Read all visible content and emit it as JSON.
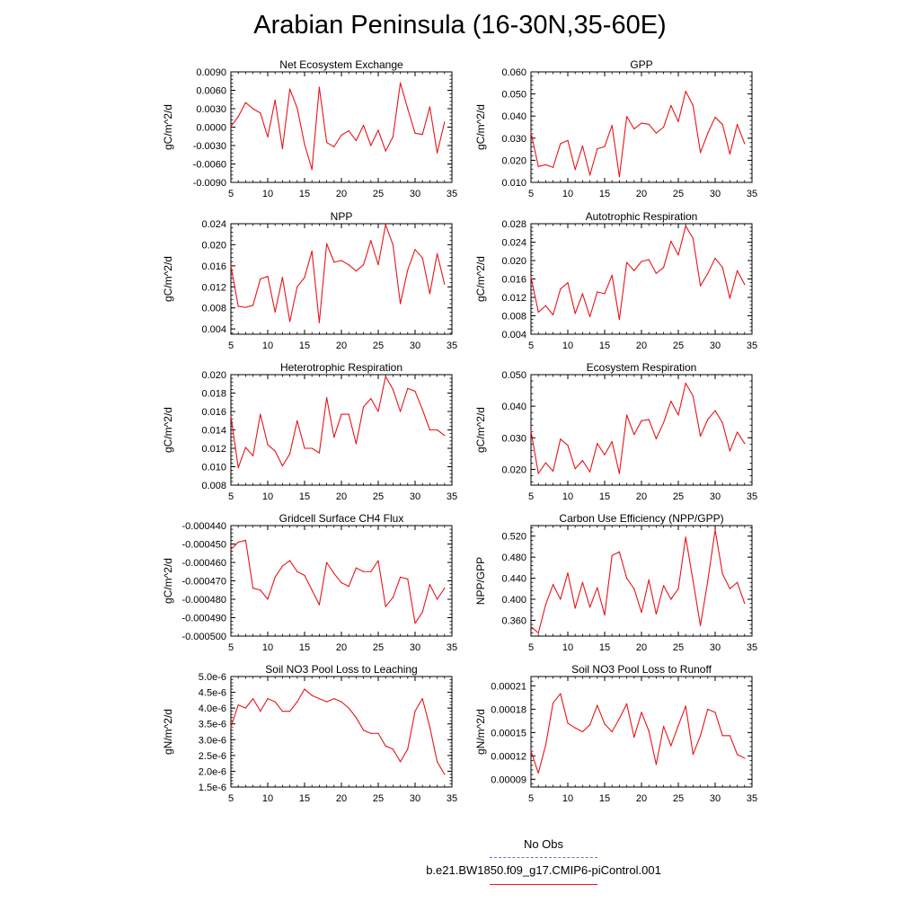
{
  "title": "Arabian Peninsula (16-30N,35-60E)",
  "colors": {
    "series": "#e8141b",
    "obs": "#6a6ad8"
  },
  "legend": {
    "obs_label": "No Obs",
    "model_label": "b.e21.BW1850.f09_g17.CMIP6-piControl.001"
  },
  "chart_data": [
    {
      "type": "line",
      "title": "Net Ecosystem Exchange",
      "ylabel": "gC/m^2/d",
      "xlim": [
        5,
        35
      ],
      "xticks": [
        5,
        10,
        15,
        20,
        25,
        30,
        35
      ],
      "xtick_labels": [
        "5",
        "10",
        "15",
        "20",
        "25",
        "30",
        "35"
      ],
      "ylim": [
        -0.009,
        0.009
      ],
      "yticks": [
        -0.009,
        -0.006,
        -0.003,
        0,
        0.003,
        0.006,
        0.009
      ],
      "ytick_labels": [
        "-0.0090",
        "-0.0060",
        "-0.0030",
        "0.0000",
        "0.0030",
        "0.0060",
        "0.0090"
      ],
      "x": [
        5,
        6,
        7,
        8,
        9,
        10,
        11,
        12,
        13,
        14,
        15,
        16,
        17,
        18,
        19,
        20,
        21,
        22,
        23,
        24,
        25,
        26,
        27,
        28,
        29,
        30,
        31,
        32,
        33,
        34
      ],
      "series": [
        {
          "values": [
            0.0001,
            0.0017,
            0.004,
            0.003,
            0.0023,
            -0.0016,
            0.0044,
            -0.0035,
            0.0062,
            0.0031,
            -0.0028,
            -0.0069,
            0.0065,
            -0.0025,
            -0.0032,
            -0.0013,
            -0.0006,
            -0.0022,
            0.0003,
            -0.003,
            -0.0005,
            -0.0039,
            -0.0016,
            0.0072,
            0.003,
            -0.001,
            -0.0012,
            0.0033,
            -0.0042,
            0.0008
          ]
        }
      ]
    },
    {
      "type": "line",
      "title": "GPP",
      "ylabel": "gC/m^2/d",
      "xlim": [
        5,
        35
      ],
      "xticks": [
        5,
        10,
        15,
        20,
        25,
        30,
        35
      ],
      "xtick_labels": [
        "5",
        "10",
        "15",
        "20",
        "25",
        "30",
        "35"
      ],
      "ylim": [
        0.01,
        0.06
      ],
      "yticks": [
        0.01,
        0.02,
        0.03,
        0.04,
        0.05,
        0.06
      ],
      "ytick_labels": [
        "0.010",
        "0.020",
        "0.030",
        "0.040",
        "0.050",
        "0.060"
      ],
      "x": [
        5,
        6,
        7,
        8,
        9,
        10,
        11,
        12,
        13,
        14,
        15,
        16,
        17,
        18,
        19,
        20,
        21,
        22,
        23,
        24,
        25,
        26,
        27,
        28,
        29,
        30,
        31,
        32,
        33,
        34
      ],
      "series": [
        {
          "values": [
            0.0325,
            0.0172,
            0.018,
            0.0168,
            0.0275,
            0.029,
            0.0158,
            0.0265,
            0.0133,
            0.0252,
            0.0262,
            0.0358,
            0.0125,
            0.0398,
            0.0342,
            0.0368,
            0.0363,
            0.0323,
            0.035,
            0.0448,
            0.0375,
            0.0512,
            0.0448,
            0.0235,
            0.0322,
            0.0395,
            0.0362,
            0.0228,
            0.0362,
            0.0275
          ]
        }
      ]
    },
    {
      "type": "line",
      "title": "NPP",
      "ylabel": "gC/m^2/d",
      "xlim": [
        5,
        35
      ],
      "xticks": [
        5,
        10,
        15,
        20,
        25,
        30,
        35
      ],
      "xtick_labels": [
        "5",
        "10",
        "15",
        "20",
        "25",
        "30",
        "35"
      ],
      "ylim": [
        0.003,
        0.024
      ],
      "yticks": [
        0.004,
        0.008,
        0.012,
        0.016,
        0.02,
        0.024
      ],
      "ytick_labels": [
        "0.004",
        "0.008",
        "0.012",
        "0.016",
        "0.020",
        "0.024"
      ],
      "x": [
        5,
        6,
        7,
        8,
        9,
        10,
        11,
        12,
        13,
        14,
        15,
        16,
        17,
        18,
        19,
        20,
        21,
        22,
        23,
        24,
        25,
        26,
        27,
        28,
        29,
        30,
        31,
        32,
        33,
        34
      ],
      "series": [
        {
          "values": [
            0.016,
            0.0083,
            0.0081,
            0.0085,
            0.0135,
            0.014,
            0.0072,
            0.0138,
            0.0054,
            0.012,
            0.0138,
            0.0188,
            0.0052,
            0.0202,
            0.0167,
            0.017,
            0.0162,
            0.015,
            0.0162,
            0.0208,
            0.0162,
            0.0238,
            0.02,
            0.0088,
            0.0152,
            0.0191,
            0.0175,
            0.0107,
            0.0183,
            0.0125
          ]
        }
      ]
    },
    {
      "type": "line",
      "title": "Autotrophic Respiration",
      "ylabel": "gC/m^2/d",
      "xlim": [
        5,
        35
      ],
      "xticks": [
        5,
        10,
        15,
        20,
        25,
        30,
        35
      ],
      "xtick_labels": [
        "5",
        "10",
        "15",
        "20",
        "25",
        "30",
        "35"
      ],
      "ylim": [
        0.004,
        0.028
      ],
      "yticks": [
        0.004,
        0.008,
        0.012,
        0.016,
        0.02,
        0.024,
        0.028
      ],
      "ytick_labels": [
        "0.004",
        "0.008",
        "0.012",
        "0.016",
        "0.020",
        "0.024",
        "0.028"
      ],
      "x": [
        5,
        6,
        7,
        8,
        9,
        10,
        11,
        12,
        13,
        14,
        15,
        16,
        17,
        18,
        19,
        20,
        21,
        22,
        23,
        24,
        25,
        26,
        27,
        28,
        29,
        30,
        31,
        32,
        33,
        34
      ],
      "series": [
        {
          "values": [
            0.0165,
            0.0088,
            0.0102,
            0.0082,
            0.0138,
            0.0152,
            0.0085,
            0.0128,
            0.0078,
            0.0132,
            0.0128,
            0.0168,
            0.0072,
            0.0196,
            0.0178,
            0.0198,
            0.0202,
            0.0172,
            0.0185,
            0.0242,
            0.0212,
            0.0275,
            0.0248,
            0.0145,
            0.0172,
            0.0205,
            0.0185,
            0.0118,
            0.0178,
            0.0148
          ]
        }
      ]
    },
    {
      "type": "line",
      "title": "Heterotrophic Respiration",
      "ylabel": "gC/m^2/d",
      "xlim": [
        5,
        35
      ],
      "xticks": [
        5,
        10,
        15,
        20,
        25,
        30,
        35
      ],
      "xtick_labels": [
        "5",
        "10",
        "15",
        "20",
        "25",
        "30",
        "35"
      ],
      "ylim": [
        0.008,
        0.02
      ],
      "yticks": [
        0.008,
        0.01,
        0.012,
        0.014,
        0.016,
        0.018,
        0.02
      ],
      "ytick_labels": [
        "0.008",
        "0.010",
        "0.012",
        "0.014",
        "0.016",
        "0.018",
        "0.020"
      ],
      "x": [
        5,
        6,
        7,
        8,
        9,
        10,
        11,
        12,
        13,
        14,
        15,
        16,
        17,
        18,
        19,
        20,
        21,
        22,
        23,
        24,
        25,
        26,
        27,
        28,
        29,
        30,
        31,
        32,
        33,
        34
      ],
      "series": [
        {
          "values": [
            0.0155,
            0.0099,
            0.0121,
            0.0112,
            0.0157,
            0.0124,
            0.0117,
            0.0101,
            0.0114,
            0.015,
            0.012,
            0.012,
            0.0115,
            0.0175,
            0.0132,
            0.0157,
            0.0157,
            0.0125,
            0.0165,
            0.0174,
            0.016,
            0.0198,
            0.0184,
            0.016,
            0.0185,
            0.0182,
            0.0162,
            0.014,
            0.014,
            0.0134
          ]
        }
      ]
    },
    {
      "type": "line",
      "title": "Ecosystem Respiration",
      "ylabel": "gC/m^2/d",
      "xlim": [
        5,
        35
      ],
      "xticks": [
        5,
        10,
        15,
        20,
        25,
        30,
        35
      ],
      "xtick_labels": [
        "5",
        "10",
        "15",
        "20",
        "25",
        "30",
        "35"
      ],
      "ylim": [
        0.015,
        0.05
      ],
      "yticks": [
        0.02,
        0.03,
        0.04,
        0.05
      ],
      "ytick_labels": [
        "0.020",
        "0.030",
        "0.040",
        "0.050"
      ],
      "x": [
        5,
        6,
        7,
        8,
        9,
        10,
        11,
        12,
        13,
        14,
        15,
        16,
        17,
        18,
        19,
        20,
        21,
        22,
        23,
        24,
        25,
        26,
        27,
        28,
        29,
        30,
        31,
        32,
        33,
        34
      ],
      "series": [
        {
          "values": [
            0.0322,
            0.0187,
            0.0221,
            0.0194,
            0.0296,
            0.0276,
            0.0202,
            0.0228,
            0.0192,
            0.0282,
            0.0246,
            0.0288,
            0.0187,
            0.0372,
            0.031,
            0.0354,
            0.0358,
            0.0297,
            0.0348,
            0.0416,
            0.0372,
            0.0473,
            0.0432,
            0.0305,
            0.0358,
            0.0386,
            0.0347,
            0.0258,
            0.0318,
            0.0282
          ]
        }
      ]
    },
    {
      "type": "line",
      "title": "Gridcell Surface CH4 Flux",
      "ylabel": "gC/m^2/d",
      "xlim": [
        5,
        35
      ],
      "xticks": [
        5,
        10,
        15,
        20,
        25,
        30,
        35
      ],
      "xtick_labels": [
        "5",
        "10",
        "15",
        "20",
        "25",
        "30",
        "35"
      ],
      "ylim": [
        -0.0005,
        -0.00044
      ],
      "yticks": [
        -0.0005,
        -0.00049,
        -0.00048,
        -0.00047,
        -0.00046,
        -0.00045,
        -0.00044
      ],
      "ytick_labels": [
        "-0.000500",
        "-0.000490",
        "-0.000480",
        "-0.000470",
        "-0.000460",
        "-0.000450",
        "-0.000440"
      ],
      "x": [
        5,
        6,
        7,
        8,
        9,
        10,
        11,
        12,
        13,
        14,
        15,
        16,
        17,
        18,
        19,
        20,
        21,
        22,
        23,
        24,
        25,
        26,
        27,
        28,
        29,
        30,
        31,
        32,
        33,
        34
      ],
      "series": [
        {
          "values": [
            -0.000453,
            -0.000449,
            -0.000448,
            -0.000474,
            -0.000475,
            -0.00048,
            -0.000468,
            -0.000462,
            -0.000459,
            -0.000465,
            -0.000467,
            -0.000475,
            -0.000483,
            -0.00046,
            -0.000466,
            -0.000471,
            -0.000473,
            -0.000463,
            -0.000465,
            -0.000465,
            -0.000459,
            -0.000484,
            -0.000479,
            -0.000468,
            -0.000469,
            -0.000493,
            -0.000487,
            -0.000472,
            -0.00048,
            -0.000474
          ]
        }
      ]
    },
    {
      "type": "line",
      "title": "Carbon Use Efficiency (NPP/GPP)",
      "ylabel": "NPP/GPP",
      "xlim": [
        5,
        35
      ],
      "xticks": [
        5,
        10,
        15,
        20,
        25,
        30,
        35
      ],
      "xtick_labels": [
        "5",
        "10",
        "15",
        "20",
        "25",
        "30",
        "35"
      ],
      "ylim": [
        0.33,
        0.54
      ],
      "yticks": [
        0.36,
        0.4,
        0.44,
        0.48,
        0.52
      ],
      "ytick_labels": [
        "0.360",
        "0.400",
        "0.440",
        "0.480",
        "0.520"
      ],
      "x": [
        5,
        6,
        7,
        8,
        9,
        10,
        11,
        12,
        13,
        14,
        15,
        16,
        17,
        18,
        19,
        20,
        21,
        22,
        23,
        24,
        25,
        26,
        27,
        28,
        29,
        30,
        31,
        32,
        33,
        34
      ],
      "series": [
        {
          "values": [
            0.348,
            0.336,
            0.39,
            0.428,
            0.4,
            0.45,
            0.383,
            0.432,
            0.385,
            0.422,
            0.37,
            0.483,
            0.49,
            0.44,
            0.42,
            0.375,
            0.437,
            0.372,
            0.426,
            0.4,
            0.42,
            0.518,
            0.435,
            0.35,
            0.435,
            0.532,
            0.448,
            0.42,
            0.432,
            0.392
          ]
        }
      ]
    },
    {
      "type": "line",
      "title": "Soil NO3 Pool Loss to Leaching",
      "ylabel": "gN/m^2/d",
      "xlim": [
        5,
        35
      ],
      "xticks": [
        5,
        10,
        15,
        20,
        25,
        30,
        35
      ],
      "xtick_labels": [
        "5",
        "10",
        "15",
        "20",
        "25",
        "30",
        "35"
      ],
      "ylim": [
        1.5e-06,
        5e-06
      ],
      "yticks": [
        1.5e-06,
        2e-06,
        2.5e-06,
        3e-06,
        3.5e-06,
        4e-06,
        4.5e-06,
        5e-06
      ],
      "ytick_labels": [
        "1.5e-6",
        "2.0e-6",
        "2.5e-6",
        "3.0e-6",
        "3.5e-6",
        "4.0e-6",
        "4.5e-6",
        "5.0e-6"
      ],
      "x": [
        5,
        6,
        7,
        8,
        9,
        10,
        11,
        12,
        13,
        14,
        15,
        16,
        17,
        18,
        19,
        20,
        21,
        22,
        23,
        24,
        25,
        26,
        27,
        28,
        29,
        30,
        31,
        32,
        33,
        34
      ],
      "series": [
        {
          "values": [
            3.4e-06,
            4.1e-06,
            4e-06,
            4.3e-06,
            3.9e-06,
            4.3e-06,
            4.2e-06,
            3.9e-06,
            3.9e-06,
            4.2e-06,
            4.6e-06,
            4.4e-06,
            4.3e-06,
            4.2e-06,
            4.3e-06,
            4.2e-06,
            4e-06,
            3.7e-06,
            3.3e-06,
            3.2e-06,
            3.2e-06,
            2.8e-06,
            2.7e-06,
            2.3e-06,
            2.7e-06,
            3.9e-06,
            4.3e-06,
            3.4e-06,
            2.3e-06,
            1.9e-06
          ]
        }
      ]
    },
    {
      "type": "line",
      "title": "Soil NO3 Pool Loss to Runoff",
      "ylabel": "gN/m^2/d",
      "xlim": [
        5,
        35
      ],
      "xticks": [
        5,
        10,
        15,
        20,
        25,
        30,
        35
      ],
      "xtick_labels": [
        "5",
        "10",
        "15",
        "20",
        "25",
        "30",
        "35"
      ],
      "ylim": [
        8e-05,
        0.000222
      ],
      "yticks": [
        9e-05,
        0.00012,
        0.00015,
        0.00018,
        0.00021
      ],
      "ytick_labels": [
        "0.00009",
        "0.00012",
        "0.00015",
        "0.00018",
        "0.00021"
      ],
      "x": [
        5,
        6,
        7,
        8,
        9,
        10,
        11,
        12,
        13,
        14,
        15,
        16,
        17,
        18,
        19,
        20,
        21,
        22,
        23,
        24,
        25,
        26,
        27,
        28,
        29,
        30,
        31,
        32,
        33,
        34
      ],
      "series": [
        {
          "values": [
            0.000126,
            9.8e-05,
            0.000134,
            0.000188,
            0.0002,
            0.000162,
            0.000156,
            0.000151,
            0.00016,
            0.000185,
            0.000161,
            0.000151,
            0.000168,
            0.000187,
            0.000144,
            0.000176,
            0.000152,
            0.000109,
            0.000158,
            0.000133,
            0.000159,
            0.000184,
            0.000122,
            0.000146,
            0.00018,
            0.000176,
            0.000146,
            0.000146,
            0.000122,
            0.000117
          ]
        }
      ]
    }
  ]
}
